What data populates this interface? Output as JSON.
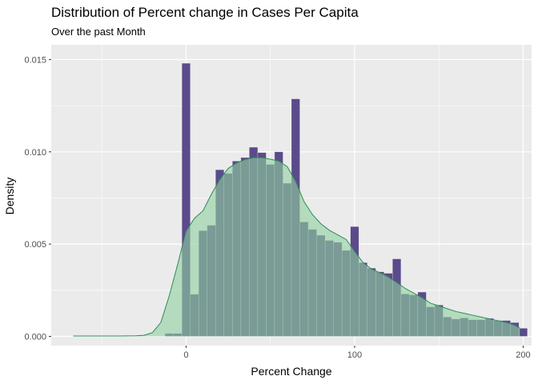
{
  "chart_data": {
    "type": "histogram",
    "title": "Distribution of Percent change in Cases Per Capita",
    "subtitle": "Over the past Month",
    "xlabel": "Percent Change",
    "ylabel": "Density",
    "xlim": [
      -80,
      205
    ],
    "ylim": [
      -0.0005,
      0.0158
    ],
    "x_ticks": [
      0,
      100,
      200
    ],
    "x_minor": [
      -50,
      50,
      150
    ],
    "y_ticks": [
      0.0,
      0.005,
      0.01,
      0.015
    ],
    "y_tick_labels": [
      "0.000",
      "0.005",
      "0.010",
      "0.015"
    ],
    "y_minor": [
      0.0025,
      0.0075,
      0.0125
    ],
    "grid": true,
    "colors": {
      "panel": "#ebebeb",
      "grid": "#ffffff",
      "histogram_fill": "#5b4b8a",
      "density_fill": "#8fd19e",
      "density_line": "#2e8b57"
    },
    "bins": {
      "start": -12.5,
      "width": 5,
      "values": [
        0.00016,
        0.00016,
        0.0148,
        0.00228,
        0.00573,
        0.00602,
        0.00903,
        0.00883,
        0.0095,
        0.00969,
        0.01025,
        0.00996,
        0.00932,
        0.01,
        0.0083,
        0.01287,
        0.0062,
        0.0058,
        0.00548,
        0.0052,
        0.0051,
        0.00466,
        0.00595,
        0.004,
        0.0037,
        0.0035,
        0.00342,
        0.0042,
        0.0023,
        0.00225,
        0.0024,
        0.0016,
        0.0017,
        0.00105,
        0.00094,
        0.001,
        0.0009,
        0.0009,
        0.00098,
        0.00086,
        0.00086,
        0.00075,
        0.00044
      ]
    },
    "density": {
      "x": [
        -67,
        -60,
        -50,
        -40,
        -30,
        -25,
        -20,
        -15,
        -10,
        -5,
        0,
        5,
        10,
        15,
        20,
        25,
        30,
        35,
        40,
        45,
        50,
        55,
        60,
        65,
        70,
        75,
        80,
        85,
        90,
        95,
        100,
        105,
        110,
        115,
        120,
        125,
        130,
        135,
        140,
        145,
        150,
        155,
        160,
        165,
        170,
        175,
        180,
        185,
        190,
        195,
        198
      ],
      "y": [
        2e-05,
        2e-05,
        2e-05,
        2e-05,
        3e-05,
        6e-05,
        0.0002,
        0.00075,
        0.0022,
        0.0039,
        0.0057,
        0.0064,
        0.0068,
        0.0077,
        0.0085,
        0.0091,
        0.0094,
        0.00958,
        0.00968,
        0.00968,
        0.0096,
        0.0095,
        0.0092,
        0.0084,
        0.0073,
        0.0066,
        0.0061,
        0.00575,
        0.0055,
        0.00525,
        0.0046,
        0.004,
        0.00365,
        0.00345,
        0.00322,
        0.00292,
        0.0026,
        0.00235,
        0.0021,
        0.0018,
        0.00165,
        0.0015,
        0.00135,
        0.00125,
        0.00115,
        0.00105,
        0.00095,
        0.00085,
        0.00075,
        0.0006,
        0.00045
      ]
    }
  }
}
